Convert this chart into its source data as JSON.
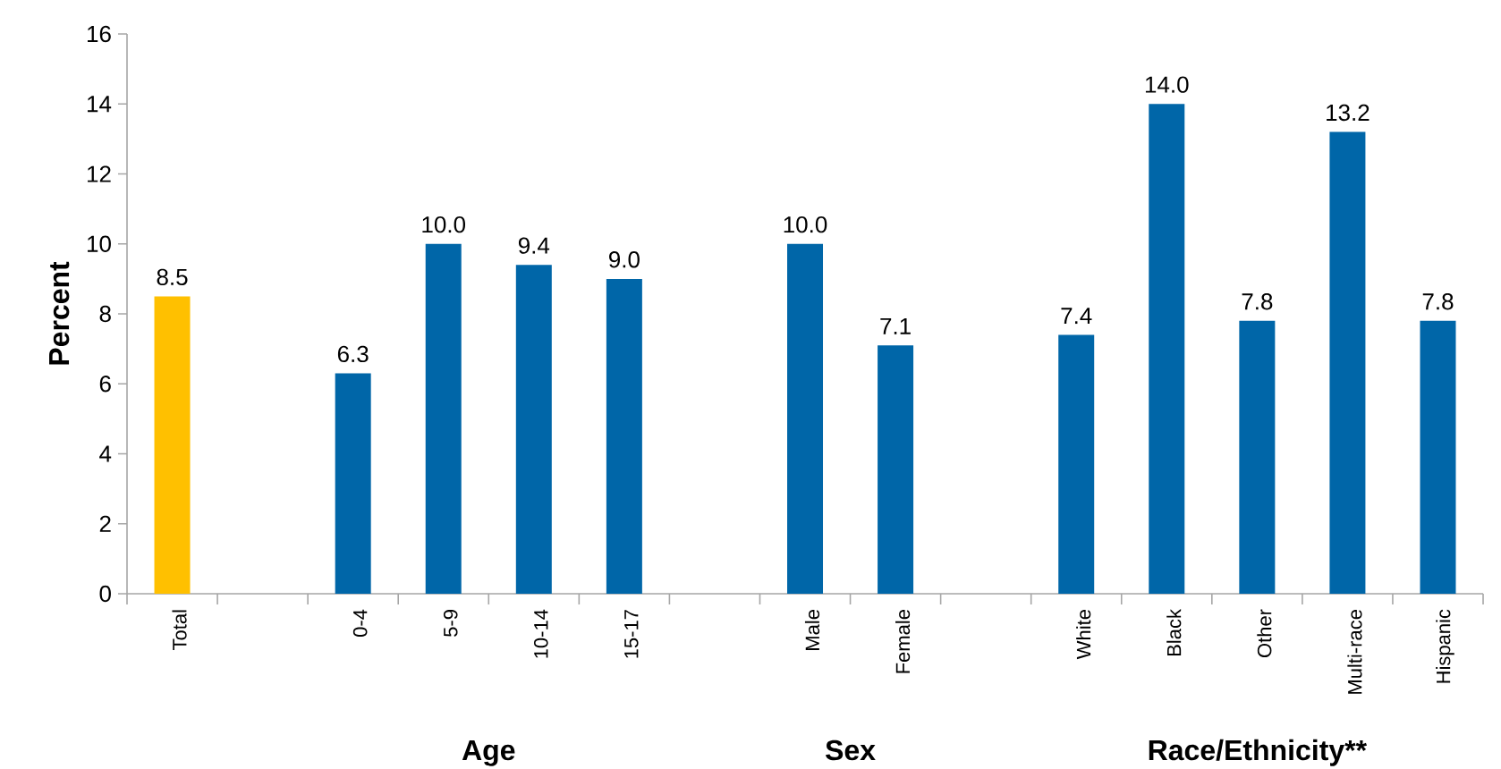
{
  "chart_data": {
    "type": "bar",
    "ylabel": "Percent",
    "categories": [
      "Total",
      null,
      "0-4",
      "5-9",
      "10-14",
      "15-17",
      null,
      "Male",
      "Female",
      null,
      "White",
      "Black",
      "Other",
      "Multi-race",
      "Hispanic"
    ],
    "values": [
      8.5,
      null,
      6.3,
      10.0,
      9.4,
      9.0,
      null,
      10.0,
      7.1,
      null,
      7.4,
      14.0,
      7.8,
      13.2,
      7.8
    ],
    "value_labels": [
      "8.5",
      null,
      "6.3",
      "10.0",
      "9.4",
      "9.0",
      null,
      "10.0",
      "7.1",
      null,
      "7.4",
      "14.0",
      "7.8",
      "13.2",
      "7.8"
    ],
    "colors": [
      "#ffc000",
      null,
      "#0066a8",
      "#0066a8",
      "#0066a8",
      "#0066a8",
      null,
      "#0066a8",
      "#0066a8",
      null,
      "#0066a8",
      "#0066a8",
      "#0066a8",
      "#0066a8",
      "#0066a8"
    ],
    "annotations": [
      "Age",
      "Sex",
      "Race/Ethnicity**"
    ],
    "ylim": [
      0,
      16
    ],
    "yticks": [
      0,
      2,
      4,
      6,
      8,
      10,
      12,
      14,
      16
    ]
  }
}
